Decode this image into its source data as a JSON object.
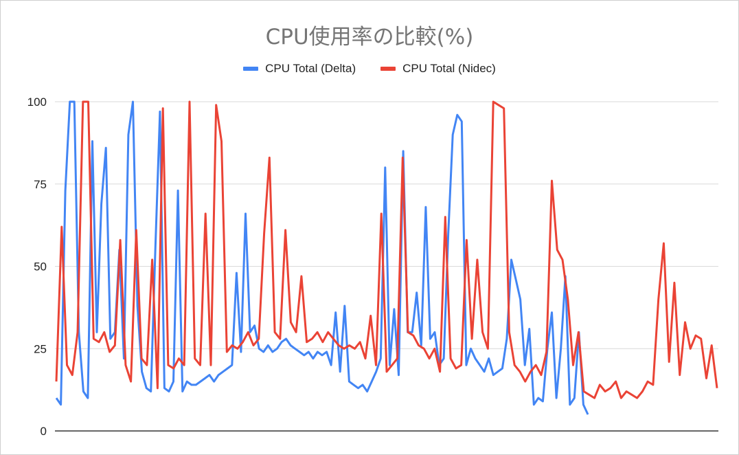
{
  "chart_data": {
    "type": "line",
    "title": "CPU使用率の比較(%)",
    "ylim": [
      0,
      100
    ],
    "yticks": [
      "0",
      "25",
      "50",
      "75",
      "100"
    ],
    "grid": true,
    "legend_position": "top",
    "x_axis_labels": false,
    "series": [
      {
        "name": "CPU Total (Delta)",
        "color": "#4285f4",
        "values": [
          10,
          8,
          73,
          100,
          100,
          30,
          12,
          10,
          88,
          30,
          69,
          86,
          28,
          30,
          55,
          22,
          90,
          100,
          38,
          18,
          13,
          12,
          56,
          97,
          13,
          12,
          15,
          73,
          12,
          15,
          14,
          14,
          15,
          16,
          17,
          15,
          17,
          18,
          19,
          20,
          48,
          24,
          66,
          30,
          32,
          25,
          24,
          26,
          24,
          25,
          27,
          28,
          26,
          25,
          24,
          23,
          24,
          22,
          24,
          23,
          24,
          20,
          36,
          18,
          38,
          15,
          14,
          13,
          14,
          12,
          15,
          18,
          22,
          80,
          20,
          37,
          17,
          85,
          30,
          30,
          42,
          26,
          68,
          28,
          30,
          20,
          22,
          60,
          90,
          96,
          94,
          20,
          25,
          22,
          20,
          18,
          22,
          17,
          18,
          19,
          28,
          52,
          46,
          40,
          20,
          31,
          8,
          10,
          9,
          25,
          36,
          10,
          25,
          47,
          8,
          10,
          30,
          8,
          5
        ]
      },
      {
        "name": "CPU Total (Nidec)",
        "color": "#ea4335",
        "values": [
          15,
          62,
          20,
          17,
          30,
          100,
          100,
          28,
          27,
          30,
          24,
          26,
          58,
          20,
          15,
          61,
          22,
          20,
          52,
          13,
          98,
          20,
          19,
          22,
          20,
          100,
          22,
          20,
          66,
          20,
          99,
          88,
          24,
          26,
          25,
          27,
          30,
          26,
          28,
          60,
          83,
          30,
          28,
          61,
          33,
          30,
          47,
          27,
          28,
          30,
          27,
          30,
          28,
          26,
          25,
          26,
          25,
          27,
          22,
          35,
          20,
          66,
          18,
          20,
          22,
          83,
          30,
          29,
          26,
          25,
          22,
          25,
          18,
          65,
          22,
          19,
          20,
          58,
          28,
          52,
          30,
          25,
          100,
          99,
          98,
          30,
          20,
          18,
          15,
          18,
          20,
          17,
          24,
          76,
          55,
          52,
          40,
          20,
          30,
          12,
          11,
          10,
          14,
          12,
          13,
          15,
          10,
          12,
          11,
          10,
          12,
          15,
          14,
          40,
          57,
          21,
          45,
          17,
          33,
          25,
          29,
          28,
          16,
          26,
          13
        ]
      }
    ]
  }
}
